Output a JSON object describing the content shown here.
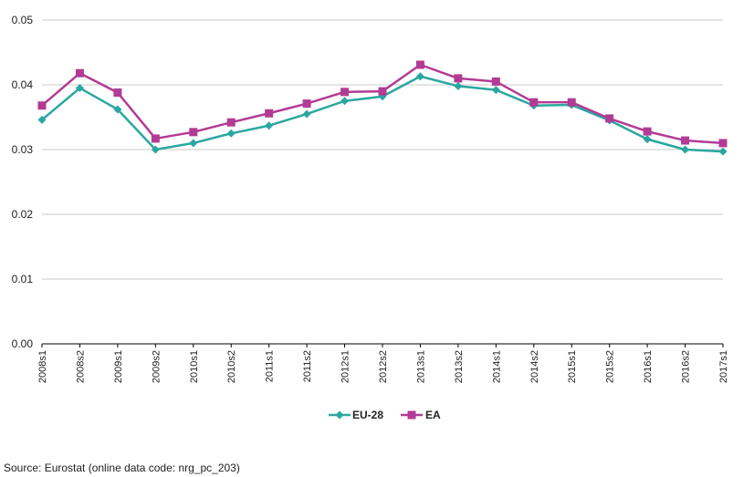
{
  "chart_data": {
    "type": "line",
    "categories": [
      "2008s1",
      "2008s2",
      "2009s1",
      "2009s2",
      "2010s1",
      "2010s2",
      "2011s1",
      "2011s2",
      "2012s1",
      "2012s2",
      "2013s1",
      "2013s2",
      "2014s1",
      "2014s2",
      "2015s1",
      "2015s2",
      "2016s1",
      "2016s2",
      "2017s1"
    ],
    "series": [
      {
        "name": "EU-28",
        "color": "#2aa7a0",
        "marker": "diamond",
        "values": [
          0.0346,
          0.0395,
          0.0362,
          0.03,
          0.031,
          0.0325,
          0.0337,
          0.0355,
          0.0375,
          0.0382,
          0.0413,
          0.0398,
          0.0392,
          0.0368,
          0.0369,
          0.0345,
          0.0316,
          0.03,
          0.0297
        ]
      },
      {
        "name": "EA",
        "color": "#b23b95",
        "marker": "square",
        "values": [
          0.0368,
          0.0418,
          0.0388,
          0.0317,
          0.0327,
          0.0342,
          0.0356,
          0.0371,
          0.0389,
          0.039,
          0.0431,
          0.041,
          0.0405,
          0.0373,
          0.0373,
          0.0348,
          0.0328,
          0.0314,
          0.031
        ]
      }
    ],
    "ylim": [
      0,
      0.05
    ],
    "yticks": [
      "0.00",
      "0.01",
      "0.02",
      "0.03",
      "0.04",
      "0.05"
    ],
    "grid": true,
    "legend_position": "bottom-center",
    "title": "",
    "xlabel": "",
    "ylabel": ""
  },
  "source": "Source: Eurostat (online data code: nrg_pc_203)"
}
